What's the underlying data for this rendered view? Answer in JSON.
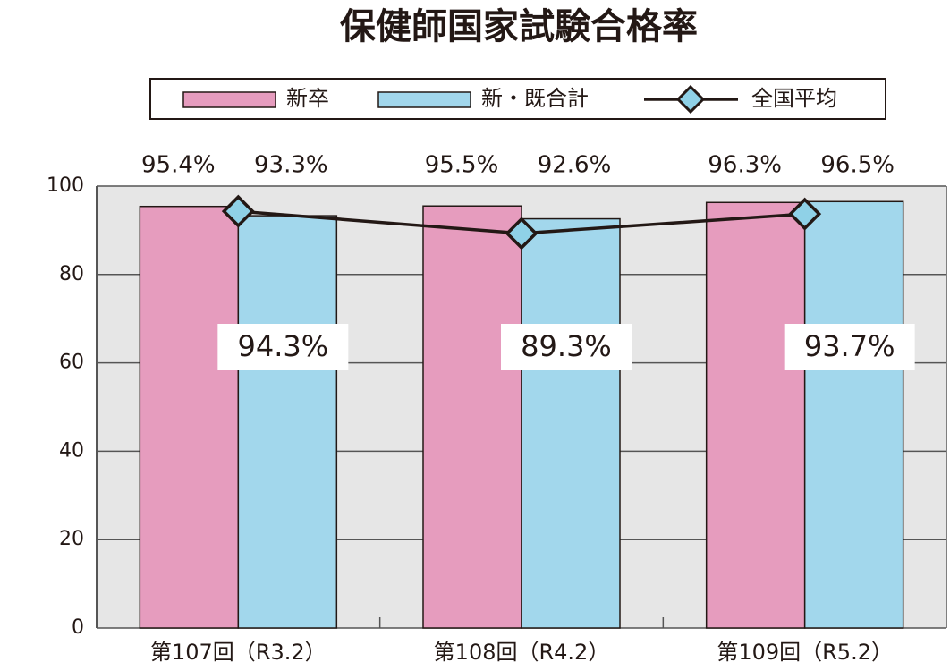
{
  "chart_data": {
    "type": "bar",
    "title": "保健師国家試験合格率",
    "categories": [
      "第107回（R3.2）",
      "第108回（R4.2）",
      "第109回（R5.2）"
    ],
    "series": [
      {
        "name": "新卒",
        "color": "#e69cbe",
        "values": [
          95.4,
          95.5,
          96.3
        ],
        "value_labels": [
          "95.4%",
          "95.5%",
          "96.3%"
        ]
      },
      {
        "name": "新・既合計",
        "color": "#a2d7ec",
        "values": [
          93.3,
          92.6,
          96.5
        ],
        "value_labels": [
          "93.3%",
          "92.6%",
          "96.5%"
        ]
      },
      {
        "name": "全国平均",
        "type": "line",
        "color": "#231815",
        "marker_color": "#8fd1e7",
        "values": [
          94.3,
          89.3,
          93.7
        ],
        "value_labels": [
          "94.3%",
          "89.3%",
          "93.7%"
        ]
      }
    ],
    "ylim": [
      0,
      100
    ],
    "yticks": [
      0,
      20,
      40,
      60,
      80,
      100
    ],
    "grid": true
  }
}
